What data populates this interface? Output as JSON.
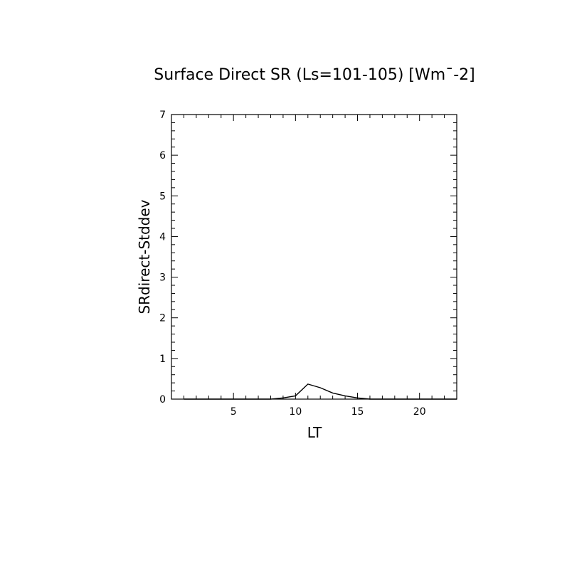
{
  "chart_data": {
    "type": "line",
    "title": "Surface Direct SR (Ls=101-105) [Wm¯-2]",
    "xlabel": "LT",
    "ylabel": "SRdirect-Stddev",
    "xlim": [
      0,
      23
    ],
    "ylim": [
      0,
      7
    ],
    "x_ticks": [
      5,
      10,
      15,
      20
    ],
    "y_ticks": [
      0,
      1,
      2,
      3,
      4,
      5,
      6,
      7
    ],
    "grid": false,
    "series": [
      {
        "x": [
          1,
          2,
          3,
          4,
          5,
          6,
          7,
          8,
          9,
          10,
          11,
          12,
          13,
          14,
          15,
          16,
          17,
          18,
          19,
          20,
          21,
          22,
          23
        ],
        "y": [
          0,
          0,
          0,
          0,
          0,
          0,
          0,
          0,
          0.03,
          0.08,
          0.37,
          0.28,
          0.15,
          0.08,
          0.03,
          0,
          0,
          0,
          0,
          0,
          0,
          0,
          0
        ]
      }
    ],
    "color": "#000000"
  }
}
